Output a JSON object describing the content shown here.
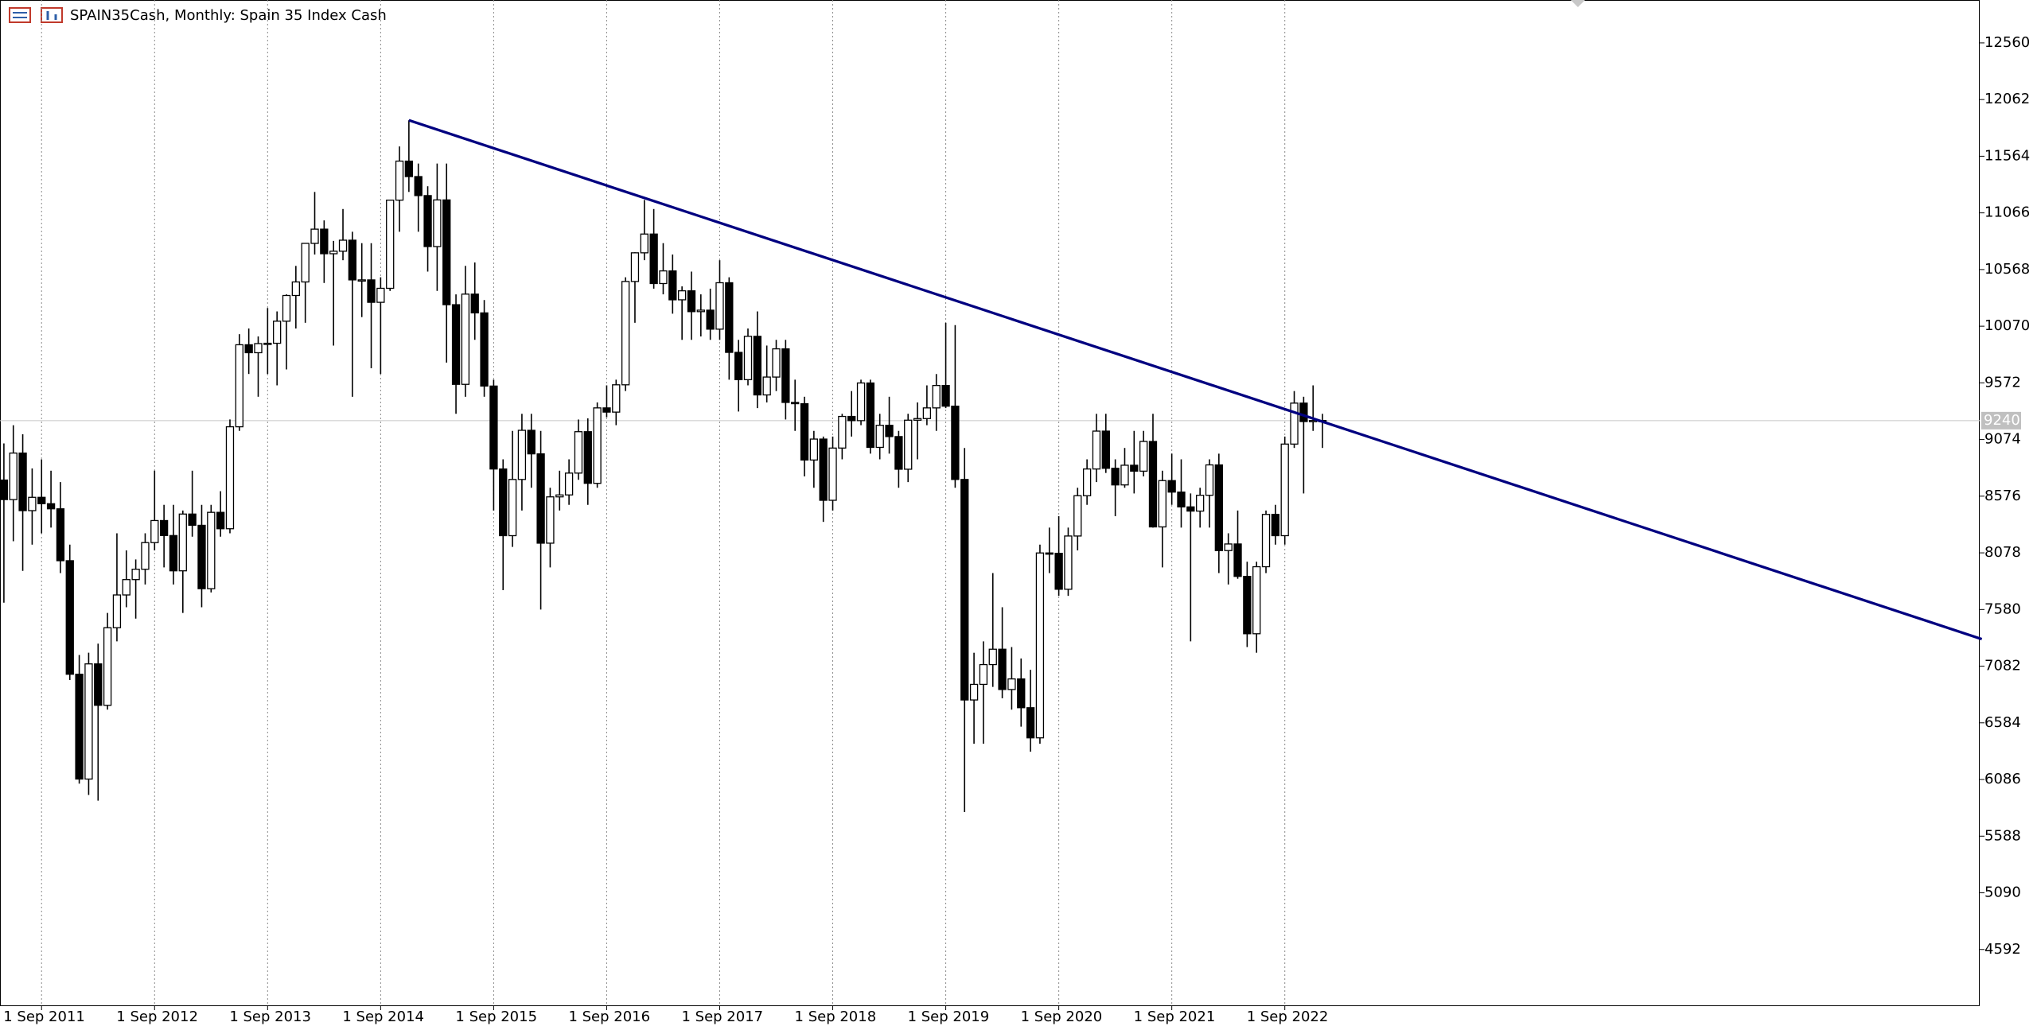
{
  "chart_data": {
    "type": "candlestick",
    "title": "SPAIN35Cash, Monthly:  Spain 35 Index Cash",
    "categories": [
      null,
      null,
      null,
      null,
      "1 Sep 2011",
      null,
      null,
      null,
      null,
      null,
      null,
      null,
      null,
      null,
      null,
      null,
      "1 Sep 2012",
      null,
      null,
      null,
      null,
      null,
      null,
      null,
      null,
      null,
      null,
      null,
      "1 Sep 2013",
      null,
      null,
      null,
      null,
      null,
      null,
      null,
      null,
      null,
      null,
      null,
      "1 Sep 2014",
      null,
      null,
      null,
      null,
      null,
      null,
      null,
      null,
      null,
      null,
      null,
      "1 Sep 2015",
      null,
      null,
      null,
      null,
      null,
      null,
      null,
      null,
      null,
      null,
      null,
      "1 Sep 2016",
      null,
      null,
      null,
      null,
      null,
      null,
      null,
      null,
      null,
      null,
      null,
      "1 Sep 2017",
      null,
      null,
      null,
      null,
      null,
      null,
      null,
      null,
      null,
      null,
      null,
      "1 Sep 2018",
      null,
      null,
      null,
      null,
      null,
      null,
      null,
      null,
      null,
      null,
      null,
      "1 Sep 2019",
      null,
      null,
      null,
      null,
      null,
      null,
      null,
      null,
      null,
      null,
      null,
      "1 Sep 2020",
      null,
      null,
      null,
      null,
      null,
      null,
      null,
      null,
      null,
      null,
      null,
      "1 Sep 2021",
      null,
      null,
      null,
      null,
      null,
      null,
      null,
      null,
      null,
      null,
      null,
      "1 Sep 2022",
      null,
      null,
      null,
      null
    ],
    "open": [
      8718,
      8546,
      8955,
      8449,
      8566,
      8510,
      8465,
      8009,
      7011,
      6090,
      7102,
      6738,
      7420,
      7708,
      7843,
      7934,
      8168,
      8362,
      8230,
      7920,
      8419,
      8320,
      7763,
      8434,
      8290,
      9186,
      9907,
      9837,
      9917,
      9920,
      10114,
      10340,
      10459,
      10798,
      10923,
      10707,
      10729,
      10826,
      10477,
      10477,
      10280,
      10403,
      11178,
      11521,
      11385,
      11218,
      10770,
      11180,
      10259,
      9559,
      10352,
      10187,
      9544,
      8815,
      8229,
      8723,
      9155,
      8948,
      8163,
      8570,
      8587,
      8779,
      9143,
      8689,
      9352,
      9315,
      9555,
      10463,
      10715,
      10880,
      10445,
      10556,
      10302,
      10381,
      10198,
      10211,
      10044,
      10452,
      9840,
      9600,
      9981,
      9466,
      9623,
      9871,
      9400,
      9389,
      8894,
      9078,
      8540,
      8999,
      9277,
      9240,
      9571,
      9005,
      9199,
      9100,
      8813,
      9244,
      9258,
      9352,
      9549,
      9367,
      8723,
      6785,
      6922,
      7096,
      7231,
      6877,
      6970,
      6717,
      6452,
      8077,
      8074,
      7758,
      8226,
      8580,
      8815,
      9148,
      8821,
      8675,
      8848,
      8796,
      9057,
      8306,
      8713,
      8612,
      8482,
      8445,
      8584,
      8851,
      8098,
      8156,
      7871,
      7367,
      7956,
      8416,
      8229,
      9034,
      9394,
      9232,
      9241
    ],
    "high": [
      9040,
      9200,
      9120,
      8820,
      8900,
      8800,
      8700,
      8150,
      7180,
      7200,
      7280,
      7550,
      8250,
      8100,
      8020,
      8250,
      8800,
      8500,
      8500,
      8450,
      8800,
      8500,
      8500,
      8620,
      9250,
      10000,
      10050,
      9980,
      10230,
      10200,
      10350,
      10600,
      10800,
      11250,
      11000,
      10820,
      11100,
      10900,
      10800,
      10800,
      10500,
      11180,
      11650,
      11880,
      11500,
      11300,
      11500,
      11500,
      10350,
      10600,
      10630,
      10300,
      9600,
      8900,
      9150,
      9300,
      9300,
      9150,
      8650,
      8800,
      8900,
      9250,
      9260,
      9400,
      9550,
      9600,
      10500,
      10720,
      11180,
      11100,
      10800,
      10700,
      10420,
      10550,
      10350,
      10400,
      10650,
      10500,
      9950,
      10050,
      10200,
      9900,
      9950,
      9950,
      9600,
      9450,
      9150,
      9100,
      9100,
      9300,
      9500,
      9600,
      9600,
      9300,
      9450,
      9150,
      9300,
      9400,
      9550,
      9650,
      10100,
      10080,
      9000,
      7200,
      7300,
      7900,
      7600,
      7250,
      7150,
      7050,
      8150,
      8300,
      8400,
      8300,
      8650,
      8900,
      9300,
      9300,
      8900,
      9000,
      9150,
      9150,
      9300,
      8800,
      8950,
      8900,
      8600,
      8650,
      8900,
      8950,
      8250,
      8450,
      8000,
      8000,
      8450,
      8500,
      9100,
      9500,
      9450,
      9550,
      9300
    ],
    "low": [
      7640,
      8180,
      7920,
      8150,
      8250,
      8300,
      7900,
      6960,
      6050,
      5950,
      5900,
      6700,
      7300,
      7600,
      7500,
      7800,
      8100,
      7950,
      7800,
      7550,
      8220,
      7600,
      7730,
      8220,
      8250,
      9150,
      9650,
      9450,
      9650,
      9550,
      9690,
      10050,
      10100,
      10700,
      10450,
      9900,
      10650,
      9450,
      10150,
      9700,
      9650,
      10380,
      10900,
      11250,
      10900,
      10550,
      10380,
      9750,
      9300,
      9450,
      9950,
      9450,
      8450,
      7750,
      8130,
      8450,
      8650,
      7580,
      7950,
      8450,
      8500,
      8720,
      8500,
      8650,
      9270,
      9200,
      9500,
      10100,
      10650,
      10400,
      10350,
      10180,
      9950,
      9950,
      9980,
      9950,
      9950,
      9600,
      9320,
      9550,
      9350,
      9400,
      9500,
      9250,
      9150,
      8750,
      8650,
      8350,
      8450,
      8900,
      9100,
      9200,
      8950,
      8900,
      8950,
      8650,
      8700,
      8900,
      9200,
      9150,
      9350,
      8650,
      5800,
      6400,
      6400,
      6900,
      6800,
      6700,
      6550,
      6330,
      6400,
      7900,
      7700,
      7700,
      8100,
      8500,
      8700,
      8780,
      8400,
      8650,
      8600,
      8750,
      8300,
      7950,
      8500,
      8300,
      7300,
      8300,
      8300,
      7900,
      7800,
      7850,
      7250,
      7200,
      7900,
      8150,
      8150,
      9000,
      8600,
      9150,
      9000
    ],
    "close": [
      8546,
      8955,
      8449,
      8566,
      8510,
      8465,
      8009,
      7011,
      6090,
      7102,
      6738,
      7420,
      7708,
      7843,
      7934,
      8168,
      8362,
      8230,
      7920,
      8419,
      8320,
      7763,
      8434,
      8290,
      9186,
      9907,
      9837,
      9917,
      9920,
      10114,
      10340,
      10459,
      10798,
      10923,
      10707,
      10729,
      10826,
      10477,
      10477,
      10280,
      10403,
      11178,
      11521,
      11385,
      11218,
      10770,
      11180,
      10259,
      9559,
      10352,
      10187,
      9544,
      8815,
      8229,
      8723,
      9155,
      8948,
      8163,
      8570,
      8587,
      8779,
      9143,
      8689,
      9352,
      9315,
      9555,
      10463,
      10715,
      10880,
      10445,
      10556,
      10302,
      10381,
      10198,
      10211,
      10044,
      10452,
      9840,
      9600,
      9981,
      9466,
      9623,
      9871,
      9400,
      9389,
      8894,
      9078,
      8540,
      8999,
      9277,
      9240,
      9571,
      9005,
      9199,
      9100,
      8813,
      9244,
      9258,
      9352,
      9549,
      9367,
      8723,
      6785,
      6922,
      7096,
      7231,
      6877,
      6970,
      6717,
      6452,
      8077,
      8074,
      7758,
      8226,
      8580,
      8815,
      9148,
      8821,
      8675,
      8848,
      8796,
      9057,
      8306,
      8713,
      8612,
      8482,
      8445,
      8584,
      8851,
      8098,
      8156,
      7871,
      7367,
      7956,
      8416,
      8229,
      9034,
      9394,
      9232,
      9241,
      9240
    ],
    "up_color": "#ffffff",
    "down_color": "#000000",
    "ylim": [
      4101,
      12937
    ],
    "yticks": [
      12560,
      12062,
      11564,
      11066,
      10568,
      10070,
      9572,
      9074,
      8576,
      8078,
      7580,
      7082,
      6584,
      6086,
      5588,
      5090,
      4592
    ],
    "current_price": 9240,
    "trendline": {
      "start_index": 43,
      "start_value": 11880,
      "end_index": 210,
      "end_value": 7320,
      "color": "#000080"
    }
  }
}
